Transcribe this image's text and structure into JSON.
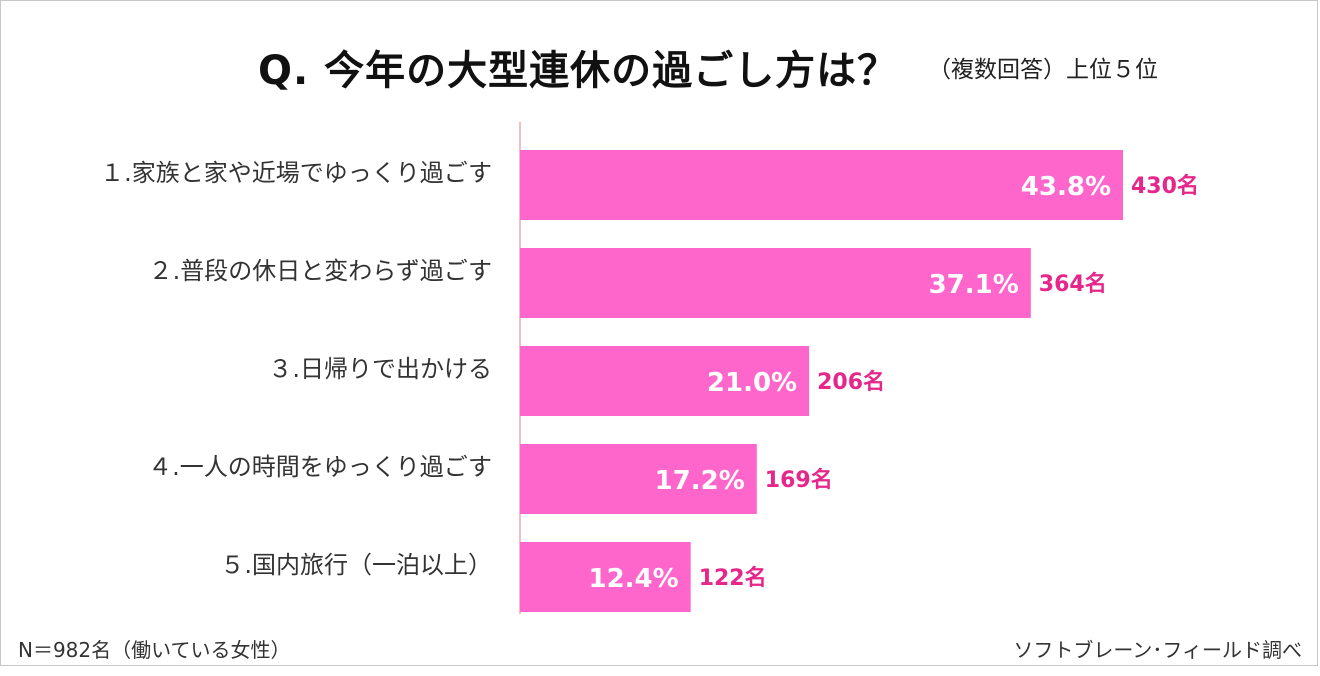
{
  "title": "Q.  今年の大型連休の過ごし方は？",
  "subtitle": "（複数回答）上位５位",
  "footer": {
    "sample": "N＝982名（働いている女性）",
    "source": "ソフトブレーン･フィールド調べ"
  },
  "colors": {
    "bar": "#ff66cc",
    "count_text": "#e6268a",
    "axis": "#e08080"
  },
  "chart_data": {
    "type": "bar",
    "orientation": "horizontal",
    "title": "Q.  今年の大型連休の過ごし方は？",
    "subtitle": "（複数回答）上位５位",
    "categories": [
      "１.家族と家や近場でゆっくり過ごす",
      "２.普段の休日と変わらず過ごす",
      "３.日帰りで出かける",
      "４.一人の時間をゆっくり過ごす",
      "５.国内旅行（一泊以上）"
    ],
    "values": [
      43.8,
      37.1,
      21.0,
      17.2,
      12.4
    ],
    "value_labels": [
      "43.8%",
      "37.1%",
      "21.0%",
      "17.2%",
      "12.4%"
    ],
    "counts": [
      430,
      364,
      206,
      169,
      122
    ],
    "count_labels": [
      "430名",
      "364名",
      "206名",
      "169名",
      "122名"
    ],
    "unit": "%",
    "xlim": [
      0,
      50
    ],
    "grid": false,
    "legend": "none"
  }
}
